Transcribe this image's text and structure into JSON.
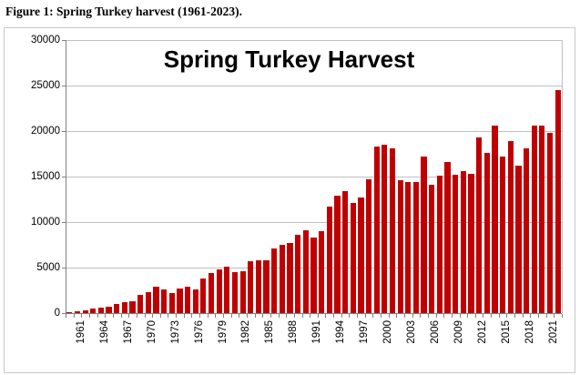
{
  "caption": "Figure 1: Spring Turkey harvest (1961-2023).",
  "chart_data": {
    "type": "bar",
    "title": "Spring Turkey Harvest",
    "xlabel": "",
    "ylabel": "",
    "ylim": [
      0,
      30000
    ],
    "ytick_interval": 5000,
    "ytick_labels": [
      "0",
      "5000",
      "10000",
      "15000",
      "20000",
      "25000",
      "30000"
    ],
    "xtick_label_every": 3,
    "xtick_labels_shown": [
      "1961",
      "1964",
      "1967",
      "1970",
      "1973",
      "1976",
      "1979",
      "1982",
      "1985",
      "1988",
      "1991",
      "1994",
      "1997",
      "2000",
      "2003",
      "2006",
      "2009",
      "2012",
      "2015",
      "2018",
      "2021"
    ],
    "grid": "horizontal",
    "legend": "none",
    "bar_color": "#c00000",
    "categories": [
      1961,
      1962,
      1963,
      1964,
      1965,
      1966,
      1967,
      1968,
      1969,
      1970,
      1971,
      1972,
      1973,
      1974,
      1975,
      1976,
      1977,
      1978,
      1979,
      1980,
      1981,
      1982,
      1983,
      1984,
      1985,
      1986,
      1987,
      1988,
      1989,
      1990,
      1991,
      1992,
      1993,
      1994,
      1995,
      1996,
      1997,
      1998,
      1999,
      2000,
      2001,
      2002,
      2003,
      2004,
      2005,
      2006,
      2007,
      2008,
      2009,
      2010,
      2011,
      2012,
      2013,
      2014,
      2015,
      2016,
      2017,
      2018,
      2019,
      2020,
      2021,
      2022,
      2023
    ],
    "values": [
      150,
      160,
      280,
      500,
      620,
      700,
      1000,
      1250,
      1300,
      2000,
      2330,
      2900,
      2570,
      2230,
      2730,
      2900,
      2650,
      3800,
      4450,
      4830,
      5070,
      4500,
      4630,
      5730,
      5830,
      5800,
      7070,
      7470,
      7730,
      8570,
      9070,
      8330,
      9000,
      11670,
      12900,
      13400,
      12070,
      12730,
      14730,
      18330,
      18500,
      18070,
      14570,
      14400,
      14400,
      17230,
      14070,
      15070,
      16630,
      15170,
      15630,
      15330,
      19300,
      17570,
      20630,
      17230,
      18930,
      16230,
      18070,
      20630,
      20630,
      19830,
      24530
    ]
  },
  "colors": {
    "bar": "#c00000",
    "gridline": "#bfbfbf",
    "axis": "#808080",
    "text": "#000000",
    "chart_border": "#c9c9c9",
    "background": "#ffffff"
  }
}
